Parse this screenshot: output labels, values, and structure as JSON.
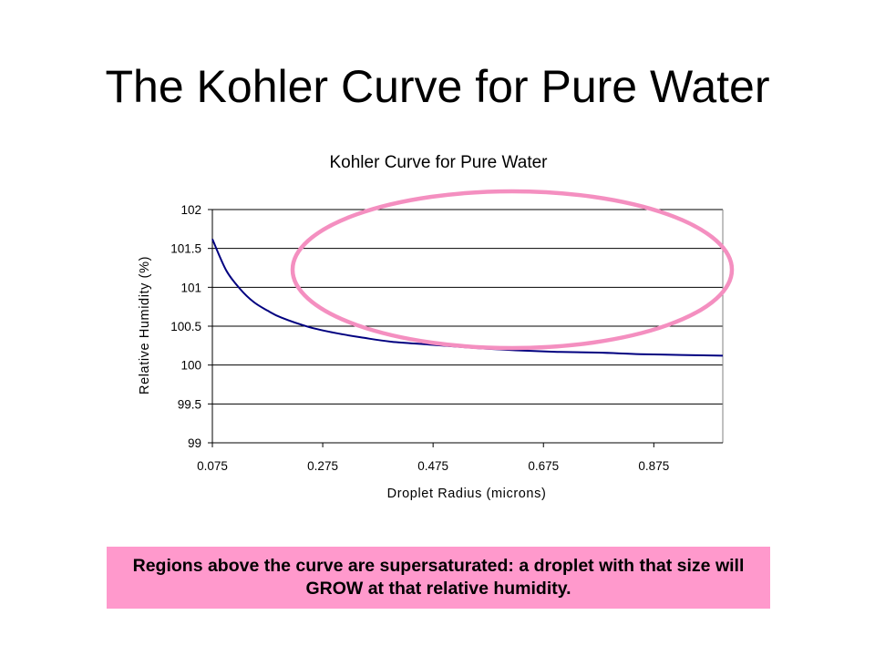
{
  "slide": {
    "title": "The Kohler Curve for Pure Water"
  },
  "note": {
    "text": "Regions above the curve are supersaturated:  a droplet with that size will GROW at that relative humidity.",
    "background": "#ff99cc"
  },
  "highlight": {
    "shape": "ellipse",
    "color": "#f48fc0",
    "description_region": "supersaturated region above the curve"
  },
  "chart_data": {
    "type": "line",
    "title": "Kohler Curve for Pure Water",
    "xlabel": "Droplet Radius (microns)",
    "ylabel": "Relative Humidity (%)",
    "xlim": [
      0.075,
      1.0
    ],
    "ylim": [
      99,
      102
    ],
    "x_ticks": [
      0.075,
      0.275,
      0.475,
      0.675,
      0.875
    ],
    "x_tick_labels": [
      "0.075",
      "0.275",
      "0.475",
      "0.675",
      "0.875"
    ],
    "y_ticks": [
      99,
      99.5,
      100,
      100.5,
      101,
      101.5,
      102
    ],
    "y_tick_labels": [
      "99",
      "99.5",
      "100",
      "100.5",
      "101",
      "101.5",
      "102"
    ],
    "grid": "horizontal",
    "legend": "none",
    "line_color": "#000080",
    "series": [
      {
        "x": [
          0.075,
          0.1,
          0.125,
          0.15,
          0.175,
          0.2,
          0.25,
          0.3,
          0.35,
          0.4,
          0.475,
          0.55,
          0.625,
          0.7,
          0.775,
          0.85,
          0.925,
          1.0
        ],
        "values": [
          101.62,
          101.22,
          100.98,
          100.81,
          100.7,
          100.61,
          100.49,
          100.41,
          100.35,
          100.3,
          100.26,
          100.22,
          100.19,
          100.17,
          100.16,
          100.14,
          100.13,
          100.12
        ]
      }
    ]
  }
}
